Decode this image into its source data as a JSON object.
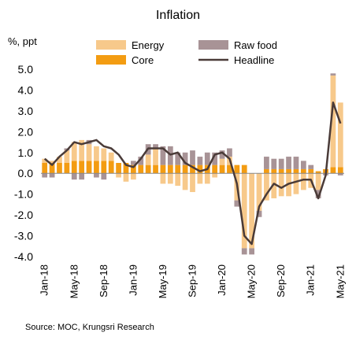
{
  "chart_data": {
    "type": "bar+line",
    "title": "Inflation",
    "unit_label": "%, ppt",
    "ylim": [
      -4.0,
      5.0
    ],
    "yticks": [
      "5.0",
      "4.0",
      "3.0",
      "2.0",
      "1.0",
      "0.0",
      "-1.0",
      "-2.0",
      "-3.0",
      "-4.0"
    ],
    "ytick_values": [
      5,
      4,
      3,
      2,
      1,
      0,
      -1,
      -2,
      -3,
      -4
    ],
    "xtick_labels": [
      "Jan-18",
      "May-18",
      "Sep-18",
      "Jan-19",
      "May-19",
      "Sep-19",
      "Jan-20",
      "May-20",
      "Sep-20",
      "Jan-21",
      "May-21"
    ],
    "categories": [
      "Jan-18",
      "Feb-18",
      "Mar-18",
      "Apr-18",
      "May-18",
      "Jun-18",
      "Jul-18",
      "Aug-18",
      "Sep-18",
      "Oct-18",
      "Nov-18",
      "Dec-18",
      "Jan-19",
      "Feb-19",
      "Mar-19",
      "Apr-19",
      "May-19",
      "Jun-19",
      "Jul-19",
      "Aug-19",
      "Sep-19",
      "Oct-19",
      "Nov-19",
      "Dec-19",
      "Jan-20",
      "Feb-20",
      "Mar-20",
      "Apr-20",
      "May-20",
      "Jun-20",
      "Jul-20",
      "Aug-20",
      "Sep-20",
      "Oct-20",
      "Nov-20",
      "Dec-20",
      "Jan-21",
      "Feb-21",
      "Mar-21",
      "Apr-21",
      "May-21"
    ],
    "stacked": true,
    "series": [
      {
        "name": "Core",
        "kind": "bar",
        "color": "#f39c12",
        "values": [
          0.5,
          0.5,
          0.5,
          0.5,
          0.6,
          0.6,
          0.6,
          0.6,
          0.6,
          0.6,
          0.5,
          0.5,
          0.4,
          0.4,
          0.4,
          0.4,
          0.4,
          0.4,
          0.4,
          0.4,
          0.4,
          0.4,
          0.4,
          0.4,
          0.4,
          0.4,
          0.4,
          0.4,
          0.0,
          0.0,
          0.2,
          0.2,
          0.2,
          0.2,
          0.2,
          0.2,
          0.2,
          0.1,
          0.2,
          0.3,
          0.3
        ]
      },
      {
        "name": "Energy",
        "kind": "bar",
        "color": "#f7c98b",
        "values": [
          0.2,
          0.1,
          0.3,
          0.6,
          0.9,
          1.0,
          0.8,
          0.7,
          0.6,
          0.4,
          -0.2,
          -0.4,
          -0.3,
          0.0,
          0.5,
          0.8,
          -0.5,
          -0.5,
          -0.6,
          -0.8,
          -0.9,
          -0.5,
          -0.5,
          -0.2,
          0.3,
          0.4,
          -1.3,
          -3.6,
          -3.6,
          -1.8,
          -1.3,
          -1.2,
          -1.1,
          -1.1,
          -1.0,
          -0.8,
          -0.7,
          -0.8,
          0.0,
          4.4,
          3.1
        ]
      },
      {
        "name": "Raw food",
        "kind": "bar",
        "color": "#a89396",
        "values": [
          -0.2,
          -0.2,
          0.0,
          0.1,
          -0.3,
          -0.3,
          0.2,
          -0.2,
          -0.3,
          0.0,
          0.0,
          0.0,
          0.2,
          0.4,
          0.5,
          0.2,
          0.9,
          0.9,
          0.6,
          0.6,
          0.7,
          0.4,
          0.6,
          0.6,
          0.4,
          0.4,
          -0.3,
          -0.3,
          -0.3,
          -0.3,
          0.6,
          0.5,
          0.5,
          0.6,
          0.6,
          0.4,
          0.2,
          -0.4,
          -0.1,
          0.1,
          -0.1
        ]
      },
      {
        "name": "Headline",
        "kind": "line",
        "color": "#4a3b38",
        "values": [
          0.7,
          0.4,
          0.8,
          1.1,
          1.5,
          1.4,
          1.5,
          1.6,
          1.3,
          1.2,
          0.9,
          0.4,
          0.3,
          0.7,
          1.2,
          1.2,
          1.2,
          0.9,
          1.0,
          0.5,
          0.3,
          0.1,
          0.2,
          0.9,
          1.0,
          0.7,
          -0.5,
          -3.0,
          -3.4,
          -1.6,
          -1.0,
          -0.5,
          -0.7,
          -0.5,
          -0.4,
          -0.3,
          -0.3,
          -1.2,
          -0.1,
          3.4,
          2.4
        ]
      }
    ],
    "legend": {
      "placement": "top",
      "order": [
        "Energy",
        "Raw food",
        "Core",
        "Headline"
      ]
    },
    "grid": false
  },
  "source": "Source:  MOC, Krungsri Research"
}
